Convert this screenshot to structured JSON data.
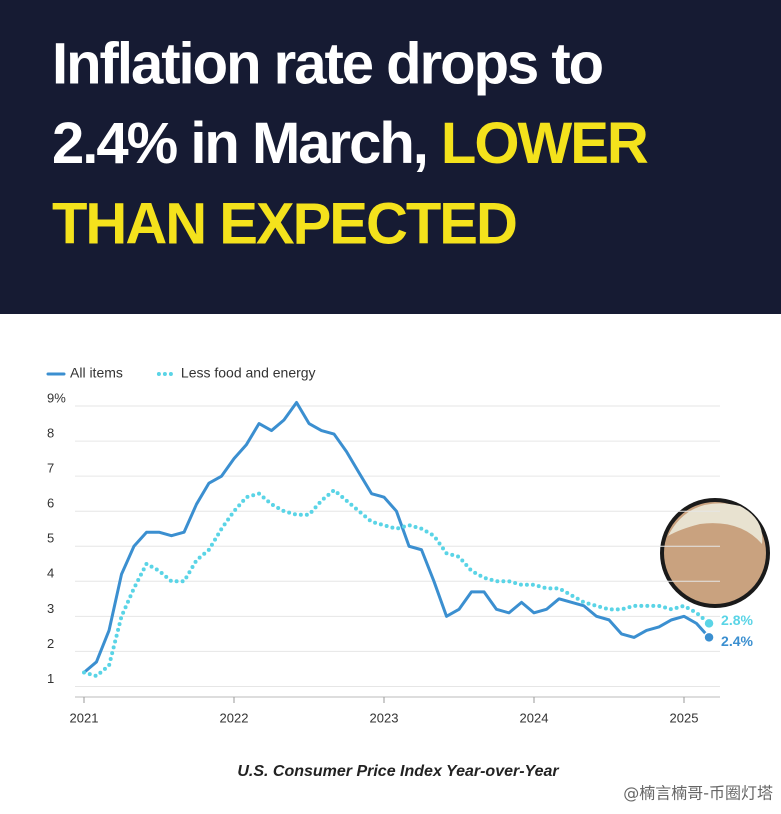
{
  "header": {
    "title_line1": "Inflation rate drops to",
    "title_line2": "2.4% in March,",
    "title_highlight_line2": "LOWER",
    "title_highlight_line3": "THAN EXPECTED"
  },
  "chart_data": {
    "type": "line",
    "caption": "U.S. Consumer Price Index Year-over-Year",
    "watermark": "@楠言楠哥-币圈灯塔",
    "x": [
      2021,
      2021.083,
      2021.167,
      2021.25,
      2021.333,
      2021.417,
      2021.5,
      2021.583,
      2021.667,
      2021.75,
      2021.833,
      2021.917,
      2022,
      2022.083,
      2022.167,
      2022.25,
      2022.333,
      2022.417,
      2022.5,
      2022.583,
      2022.667,
      2022.75,
      2022.833,
      2022.917,
      2023,
      2023.083,
      2023.167,
      2023.25,
      2023.333,
      2023.417,
      2023.5,
      2023.583,
      2023.667,
      2023.75,
      2023.833,
      2023.917,
      2024,
      2024.083,
      2024.167,
      2024.25,
      2024.333,
      2024.417,
      2024.5,
      2024.583,
      2024.667,
      2024.75,
      2024.833,
      2024.917,
      2025,
      2025.083,
      2025.167
    ],
    "series": [
      {
        "name": "All items",
        "color": "#3b8fd0",
        "style": "solid",
        "end_label": "2.4%",
        "values": [
          1.4,
          1.7,
          2.6,
          4.2,
          5.0,
          5.4,
          5.4,
          5.3,
          5.4,
          6.2,
          6.8,
          7.0,
          7.5,
          7.9,
          8.5,
          8.3,
          8.6,
          9.1,
          8.5,
          8.3,
          8.2,
          7.7,
          7.1,
          6.5,
          6.4,
          6.0,
          5.0,
          4.9,
          4.0,
          3.0,
          3.2,
          3.7,
          3.7,
          3.2,
          3.1,
          3.4,
          3.1,
          3.2,
          3.5,
          3.4,
          3.3,
          3.0,
          2.9,
          2.5,
          2.4,
          2.6,
          2.7,
          2.9,
          3.0,
          2.8,
          2.4
        ]
      },
      {
        "name": "Less food and energy",
        "color": "#5ad4e6",
        "style": "dotted",
        "end_label": "2.8%",
        "values": [
          1.4,
          1.3,
          1.6,
          3.0,
          3.8,
          4.5,
          4.3,
          4.0,
          4.0,
          4.6,
          4.9,
          5.5,
          6.0,
          6.4,
          6.5,
          6.2,
          6.0,
          5.9,
          5.9,
          6.3,
          6.6,
          6.3,
          6.0,
          5.7,
          5.6,
          5.5,
          5.6,
          5.5,
          5.3,
          4.8,
          4.7,
          4.3,
          4.1,
          4.0,
          4.0,
          3.9,
          3.9,
          3.8,
          3.8,
          3.6,
          3.4,
          3.3,
          3.2,
          3.2,
          3.3,
          3.3,
          3.3,
          3.2,
          3.3,
          3.1,
          2.8
        ]
      }
    ],
    "xlim": [
      2020.97,
      2025.25
    ],
    "xticks": [
      2021,
      2022,
      2023,
      2024,
      2025
    ],
    "ylim": [
      0.7,
      9.2
    ],
    "yticks": [
      1,
      2,
      3,
      4,
      5,
      6,
      7,
      8,
      {
        "value": 9,
        "label": "9%"
      }
    ],
    "grid": true,
    "legend": "top-left"
  }
}
